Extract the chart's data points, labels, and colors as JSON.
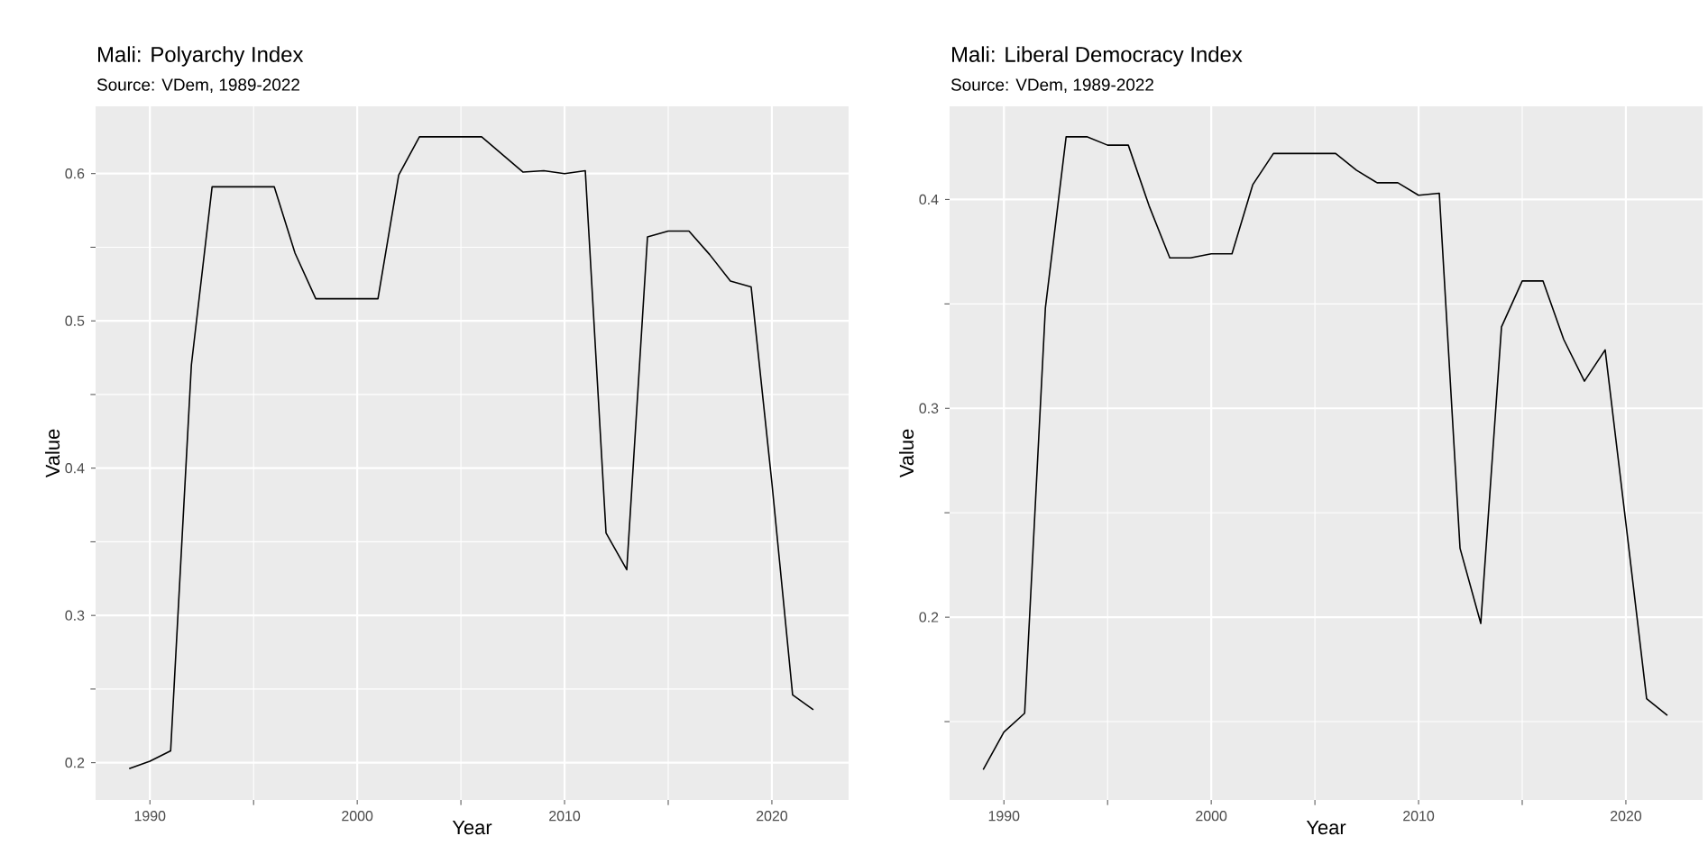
{
  "chart_data": [
    {
      "type": "line",
      "title": "Mali: Polyarchy Index",
      "subtitle": "Source: VDem, 1989-2022",
      "xlabel": "Year",
      "ylabel": "Value",
      "color": "#000000",
      "grid": true,
      "x": [
        1989,
        1990,
        1991,
        1992,
        1993,
        1994,
        1995,
        1996,
        1997,
        1998,
        1999,
        2000,
        2001,
        2002,
        2003,
        2004,
        2005,
        2006,
        2007,
        2008,
        2009,
        2010,
        2011,
        2012,
        2013,
        2014,
        2015,
        2016,
        2017,
        2018,
        2019,
        2020,
        2021,
        2022
      ],
      "values": [
        0.196,
        0.201,
        0.208,
        0.47,
        0.591,
        0.591,
        0.591,
        0.591,
        0.546,
        0.515,
        0.515,
        0.515,
        0.515,
        0.599,
        0.625,
        0.625,
        0.625,
        0.625,
        0.613,
        0.601,
        0.602,
        0.6,
        0.602,
        0.356,
        0.331,
        0.557,
        0.561,
        0.561,
        0.545,
        0.527,
        0.523,
        0.39,
        0.246,
        0.236
      ],
      "xlim": [
        1987.38,
        2023.7
      ],
      "ylim": [
        0.1747,
        0.6457
      ],
      "xticks": [
        1990,
        2000,
        2010,
        2020
      ],
      "yticks": [
        0.2,
        0.3,
        0.4,
        0.5,
        0.6
      ]
    },
    {
      "type": "line",
      "title": "Mali: Liberal Democracy Index",
      "subtitle": "Source: VDem, 1989-2022",
      "xlabel": "Year",
      "ylabel": "Value",
      "color": "#000000",
      "grid": true,
      "x": [
        1989,
        1990,
        1991,
        1992,
        1993,
        1994,
        1995,
        1996,
        1997,
        1998,
        1999,
        2000,
        2001,
        2002,
        2003,
        2004,
        2005,
        2006,
        2007,
        2008,
        2009,
        2010,
        2011,
        2012,
        2013,
        2014,
        2015,
        2016,
        2017,
        2018,
        2019,
        2020,
        2021,
        2022
      ],
      "values": [
        0.127,
        0.145,
        0.154,
        0.348,
        0.43,
        0.43,
        0.426,
        0.426,
        0.397,
        0.372,
        0.372,
        0.374,
        0.374,
        0.407,
        0.422,
        0.422,
        0.422,
        0.422,
        0.414,
        0.408,
        0.408,
        0.402,
        0.403,
        0.233,
        0.197,
        0.339,
        0.361,
        0.361,
        0.333,
        0.313,
        0.328,
        0.245,
        0.161,
        0.153
      ],
      "xlim": [
        1987.38,
        2023.7
      ],
      "ylim": [
        0.1125,
        0.4446
      ],
      "xticks": [
        1990,
        2000,
        2010,
        2020
      ],
      "yticks": [
        0.2,
        0.3,
        0.4
      ]
    }
  ]
}
